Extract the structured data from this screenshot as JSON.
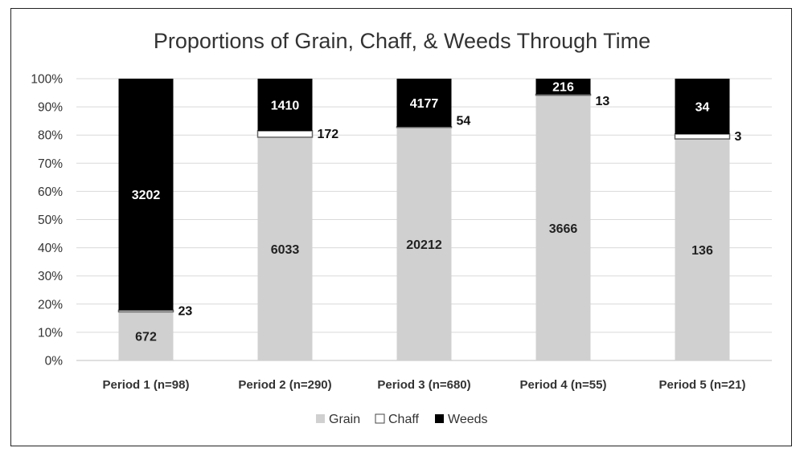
{
  "chart_data": {
    "type": "bar",
    "stacked": true,
    "normalized": true,
    "title": "Proportions of Grain, Chaff, & Weeds Through Time",
    "categories": [
      "Period 1 (n=98)",
      "Period 2 (n=290)",
      "Period 3 (n=680)",
      "Period 4 (n=55)",
      "Period 5 (n=21)"
    ],
    "y_ticks": [
      "0%",
      "10%",
      "20%",
      "30%",
      "40%",
      "50%",
      "60%",
      "70%",
      "80%",
      "90%",
      "100%"
    ],
    "ylim": [
      0,
      100
    ],
    "grid": true,
    "legend_position": "bottom",
    "series": [
      {
        "name": "Grain",
        "color": "#d0d0d0",
        "label_color": "#222222",
        "values": [
          672,
          6033,
          20212,
          3666,
          136
        ]
      },
      {
        "name": "Chaff",
        "color": "#ffffff",
        "label_color": "#111111",
        "values": [
          23,
          172,
          54,
          13,
          3
        ]
      },
      {
        "name": "Weeds",
        "color": "#000000",
        "label_color": "#ffffff",
        "values": [
          3202,
          1410,
          4177,
          216,
          34
        ]
      }
    ]
  }
}
